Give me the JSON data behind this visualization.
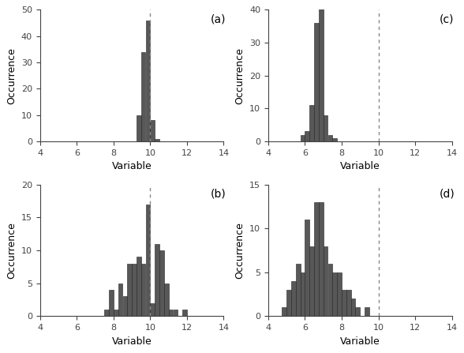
{
  "subplot_a": {
    "label": "(a)",
    "bin_edges": [
      9.0,
      9.25,
      9.5,
      9.75,
      10.0,
      10.25,
      10.5,
      10.75,
      11.0
    ],
    "bar_heights": [
      0,
      10,
      34,
      46,
      8,
      1,
      0,
      0
    ],
    "dashed_line_x": 10.0,
    "xlim": [
      4,
      14
    ],
    "ylim": [
      0,
      50
    ],
    "yticks": [
      0,
      10,
      20,
      30,
      40,
      50
    ],
    "xlabel": "Variable",
    "ylabel": "Occurrence"
  },
  "subplot_b": {
    "label": "(b)",
    "bin_edges": [
      7.5,
      7.75,
      8.0,
      8.25,
      8.5,
      8.75,
      9.0,
      9.25,
      9.5,
      9.75,
      10.0,
      10.25,
      10.5,
      10.75,
      11.0,
      11.25,
      11.5,
      11.75,
      12.0,
      12.25
    ],
    "bar_heights": [
      1,
      4,
      1,
      5,
      3,
      8,
      8,
      9,
      8,
      17,
      2,
      11,
      10,
      5,
      1,
      1,
      0,
      1,
      0
    ],
    "dashed_line_x": 10.0,
    "xlim": [
      4,
      14
    ],
    "ylim": [
      0,
      20
    ],
    "yticks": [
      0,
      5,
      10,
      15,
      20
    ],
    "xlabel": "Variable",
    "ylabel": "Occurrence"
  },
  "subplot_c": {
    "label": "(c)",
    "bin_edges": [
      5.75,
      6.0,
      6.25,
      6.5,
      6.75,
      7.0,
      7.25,
      7.5,
      7.75,
      8.0
    ],
    "bar_heights": [
      2,
      3,
      11,
      36,
      41,
      8,
      2,
      1,
      0
    ],
    "dashed_line_x": 10.0,
    "xlim": [
      4,
      14
    ],
    "ylim": [
      0,
      40
    ],
    "yticks": [
      0,
      10,
      20,
      30,
      40
    ],
    "xlabel": "Variable",
    "ylabel": "Occurrence"
  },
  "subplot_d": {
    "label": "(d)",
    "bin_edges": [
      4.75,
      5.0,
      5.25,
      5.5,
      5.75,
      6.0,
      6.25,
      6.5,
      6.75,
      7.0,
      7.25,
      7.5,
      7.75,
      8.0,
      8.25,
      8.5,
      8.75,
      9.0,
      9.25,
      9.5,
      9.75
    ],
    "bar_heights": [
      1,
      3,
      4,
      6,
      5,
      11,
      8,
      13,
      13,
      8,
      6,
      5,
      5,
      3,
      3,
      2,
      1,
      0,
      1,
      0
    ],
    "dashed_line_x": 10.0,
    "xlim": [
      4,
      14
    ],
    "ylim": [
      0,
      15
    ],
    "yticks": [
      0,
      5,
      10,
      15
    ],
    "xlabel": "Variable",
    "ylabel": "Occurrence"
  },
  "bar_color": "#585858",
  "bar_edgecolor": "#222222",
  "bar_linewidth": 0.4,
  "dashed_color": "#888888",
  "dashed_linewidth": 1.0,
  "label_fontsize": 10,
  "axis_fontsize": 8,
  "xlabel_fontsize": 9,
  "ylabel_fontsize": 9,
  "figsize": [
    5.88,
    4.47
  ],
  "dpi": 100
}
